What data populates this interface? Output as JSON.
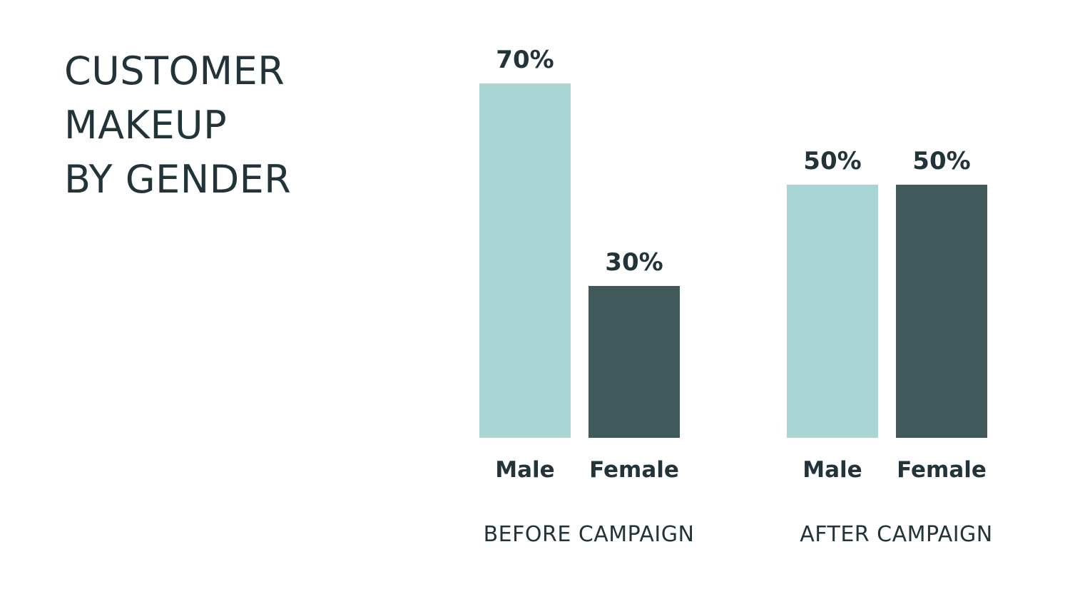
{
  "title_lines": [
    "CUSTOMER",
    "MAKEUP",
    "BY GENDER"
  ],
  "colors": {
    "male": "#a9d6d4",
    "female": "#40595a",
    "text": "#22343a",
    "background": "#ffffff"
  },
  "chart_data": {
    "type": "bar",
    "title": "CUSTOMER MAKEUP BY GENDER",
    "xlabel": "",
    "ylabel": "",
    "ylim": [
      0,
      70
    ],
    "grid": false,
    "legend": "none",
    "groups": [
      {
        "label": "BEFORE CAMPAIGN",
        "bars": [
          {
            "category": "Male",
            "value": 70,
            "label": "70%",
            "color": "#a9d6d4"
          },
          {
            "category": "Female",
            "value": 30,
            "label": "30%",
            "color": "#40595a"
          }
        ]
      },
      {
        "label": "AFTER CAMPAIGN",
        "bars": [
          {
            "category": "Male",
            "value": 50,
            "label": "50%",
            "color": "#a9d6d4"
          },
          {
            "category": "Female",
            "value": 50,
            "label": "50%",
            "color": "#40595a"
          }
        ]
      }
    ]
  }
}
